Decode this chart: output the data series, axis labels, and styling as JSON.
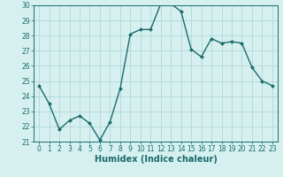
{
  "x": [
    0,
    1,
    2,
    3,
    4,
    5,
    6,
    7,
    8,
    9,
    10,
    11,
    12,
    13,
    14,
    15,
    16,
    17,
    18,
    19,
    20,
    21,
    22,
    23
  ],
  "y": [
    24.7,
    23.5,
    21.8,
    22.4,
    22.7,
    22.2,
    21.1,
    22.3,
    24.5,
    28.1,
    28.4,
    28.4,
    30.1,
    30.1,
    29.6,
    27.1,
    26.6,
    27.8,
    27.5,
    27.6,
    27.5,
    25.9,
    25.0,
    24.7
  ],
  "line_color": "#1a6b6b",
  "marker": "D",
  "marker_size": 2.0,
  "bg_color": "#d6f0f0",
  "grid_color": "#b0d8d8",
  "xlabel": "Humidex (Indice chaleur)",
  "ylim": [
    21,
    30
  ],
  "xlim_min": -0.5,
  "xlim_max": 23.5,
  "yticks": [
    21,
    22,
    23,
    24,
    25,
    26,
    27,
    28,
    29,
    30
  ],
  "xticks": [
    0,
    1,
    2,
    3,
    4,
    5,
    6,
    7,
    8,
    9,
    10,
    11,
    12,
    13,
    14,
    15,
    16,
    17,
    18,
    19,
    20,
    21,
    22,
    23
  ],
  "tick_label_color": "#1a6b6b",
  "spine_color": "#1a6b6b",
  "xlabel_color": "#1a6b6b",
  "xlabel_fontsize": 7,
  "tick_fontsize": 5.5,
  "linewidth": 1.0
}
